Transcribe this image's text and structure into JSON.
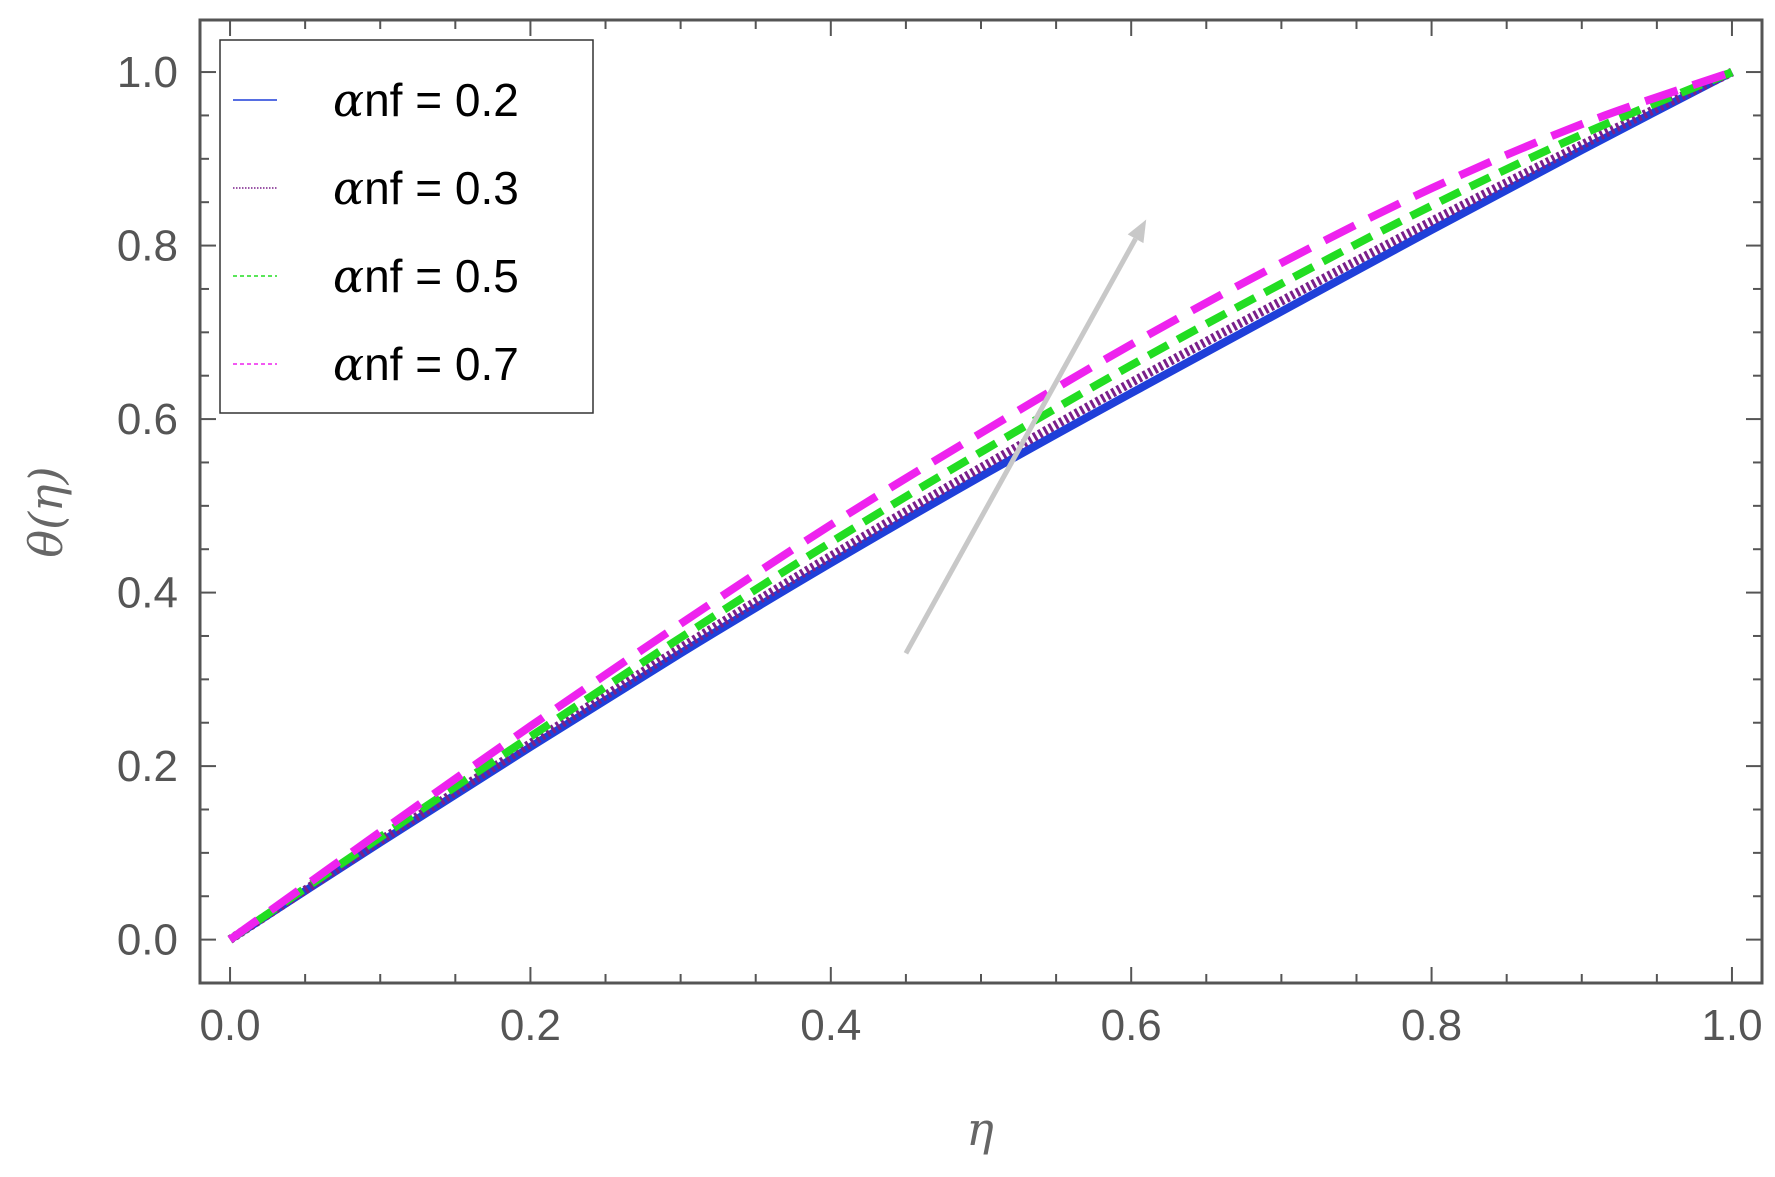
{
  "chart_data": {
    "type": "line",
    "title": "",
    "xlabel": "η",
    "ylabel": "θ(η)",
    "xlim": [
      -0.02,
      1.02
    ],
    "ylim": [
      -0.05,
      1.06
    ],
    "x_ticks": [
      "0.0",
      "0.2",
      "0.4",
      "0.6",
      "0.8",
      "1.0"
    ],
    "y_ticks": [
      "0.0",
      "0.2",
      "0.4",
      "0.6",
      "0.8",
      "1.0"
    ],
    "grid": false,
    "legend_position": "top-left",
    "x": [
      0.0,
      0.1,
      0.2,
      0.3,
      0.4,
      0.5,
      0.6,
      0.7,
      0.8,
      0.9,
      1.0
    ],
    "series": [
      {
        "name": "αnf  = 0.2",
        "greek": "α",
        "suffix": "nf  = 0.2",
        "color": "#1f3fd9",
        "style": "solid",
        "values": [
          0.0,
          0.112,
          0.222,
          0.33,
          0.434,
          0.534,
          0.63,
          0.724,
          0.818,
          0.91,
          1.0
        ]
      },
      {
        "name": "αnf  = 0.3",
        "greek": "α",
        "suffix": "nf  = 0.3",
        "color": "#7a1f8a",
        "style": "dotted",
        "values": [
          0.0,
          0.114,
          0.226,
          0.336,
          0.442,
          0.544,
          0.642,
          0.736,
          0.828,
          0.916,
          1.0
        ]
      },
      {
        "name": "αnf = 0.5",
        "greek": "α",
        "suffix": "nf = 0.5",
        "color": "#22dd22",
        "style": "dashed",
        "values": [
          0.0,
          0.118,
          0.234,
          0.348,
          0.458,
          0.562,
          0.662,
          0.756,
          0.846,
          0.928,
          1.0
        ]
      },
      {
        "name": "αnf  = 0.7",
        "greek": "α",
        "suffix": "nf  = 0.7",
        "color": "#ee22ee",
        "style": "longdash",
        "values": [
          0.0,
          0.124,
          0.246,
          0.364,
          0.478,
          0.584,
          0.686,
          0.78,
          0.866,
          0.94,
          1.0
        ]
      }
    ],
    "arrow": {
      "from": [
        0.45,
        0.33
      ],
      "to": [
        0.61,
        0.83
      ],
      "color": "#c8c8c8"
    }
  }
}
